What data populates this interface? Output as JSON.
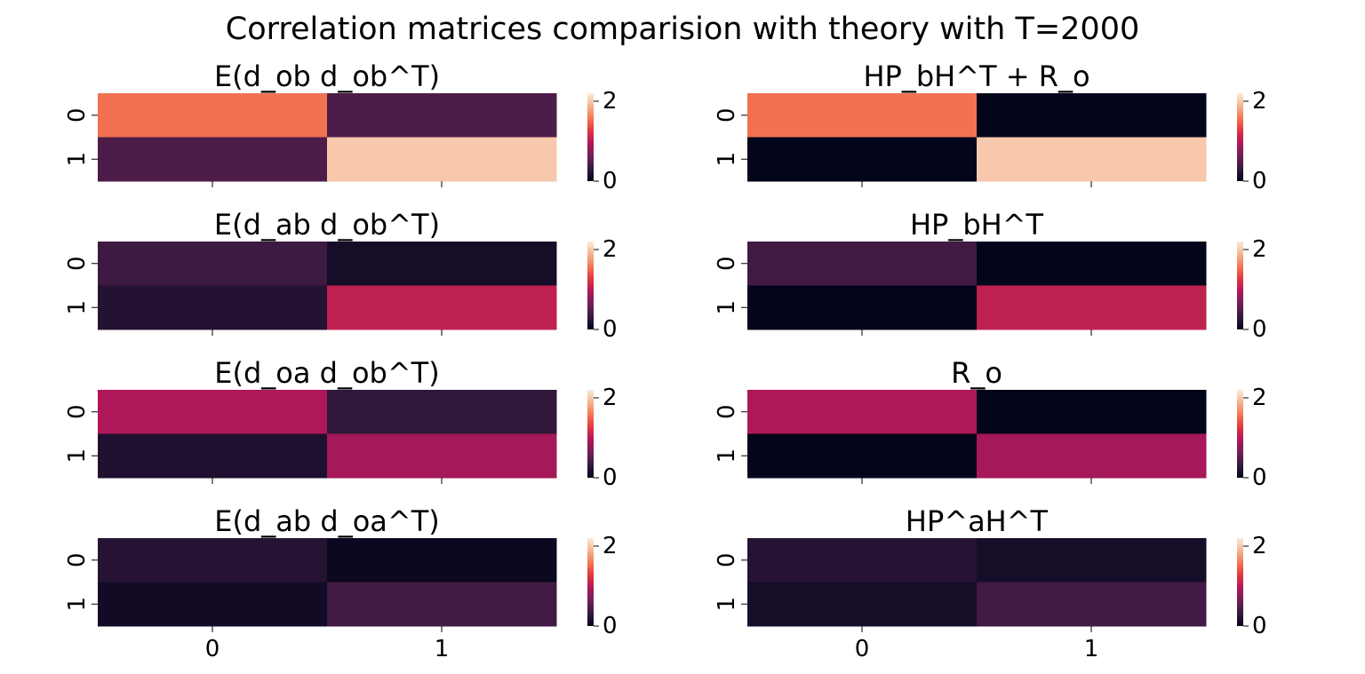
{
  "figure": {
    "title": "Correlation matrices comparision with theory with T=2000"
  },
  "colormap": {
    "name": "rocket",
    "stops": [
      "#03051a",
      "#35193e",
      "#701f57",
      "#ad1759",
      "#e13342",
      "#f37651",
      "#f6b48f",
      "#faebdd"
    ],
    "vmin": 0,
    "vmax": 2.2,
    "ticks": [
      "0",
      "2"
    ]
  },
  "chart_data": [
    {
      "type": "heatmap",
      "title": "E(d_ob d_ob^T)",
      "x_ticks": [
        "0",
        "1"
      ],
      "y_ticks": [
        "0",
        "1"
      ],
      "values": [
        [
          1.55,
          0.45
        ],
        [
          0.45,
          2.0
        ]
      ],
      "xlabel": "",
      "ylabel": ""
    },
    {
      "type": "heatmap",
      "title": "HP_bH^T + R_o",
      "x_ticks": [
        "0",
        "1"
      ],
      "y_ticks": [
        "0",
        "1"
      ],
      "values": [
        [
          1.55,
          0.0
        ],
        [
          0.0,
          2.0
        ]
      ],
      "xlabel": "",
      "ylabel": ""
    },
    {
      "type": "heatmap",
      "title": "E(d_ab d_ob^T)",
      "x_ticks": [
        "0",
        "1"
      ],
      "y_ticks": [
        "0",
        "1"
      ],
      "values": [
        [
          0.35,
          0.12
        ],
        [
          0.2,
          1.05
        ]
      ],
      "xlabel": "",
      "ylabel": ""
    },
    {
      "type": "heatmap",
      "title": "HP_bH^T",
      "x_ticks": [
        "0",
        "1"
      ],
      "y_ticks": [
        "0",
        "1"
      ],
      "values": [
        [
          0.38,
          0.0
        ],
        [
          0.0,
          1.05
        ]
      ],
      "xlabel": "",
      "ylabel": ""
    },
    {
      "type": "heatmap",
      "title": "E(d_oa d_ob^T)",
      "x_ticks": [
        "0",
        "1"
      ],
      "y_ticks": [
        "0",
        "1"
      ],
      "values": [
        [
          0.95,
          0.28
        ],
        [
          0.18,
          0.9
        ]
      ],
      "xlabel": "",
      "ylabel": ""
    },
    {
      "type": "heatmap",
      "title": "R_o",
      "x_ticks": [
        "0",
        "1"
      ],
      "y_ticks": [
        "0",
        "1"
      ],
      "values": [
        [
          0.95,
          0.0
        ],
        [
          0.0,
          0.9
        ]
      ],
      "xlabel": "",
      "ylabel": ""
    },
    {
      "type": "heatmap",
      "title": "E(d_ab d_oa^T)",
      "x_ticks": [
        "0",
        "1"
      ],
      "y_ticks": [
        "0",
        "1"
      ],
      "values": [
        [
          0.22,
          0.05
        ],
        [
          0.1,
          0.38
        ]
      ],
      "xlabel": "",
      "ylabel": ""
    },
    {
      "type": "heatmap",
      "title": "HP^aH^T",
      "x_ticks": [
        "0",
        "1"
      ],
      "y_ticks": [
        "0",
        "1"
      ],
      "values": [
        [
          0.22,
          0.12
        ],
        [
          0.12,
          0.38
        ]
      ],
      "xlabel": "",
      "ylabel": ""
    }
  ]
}
